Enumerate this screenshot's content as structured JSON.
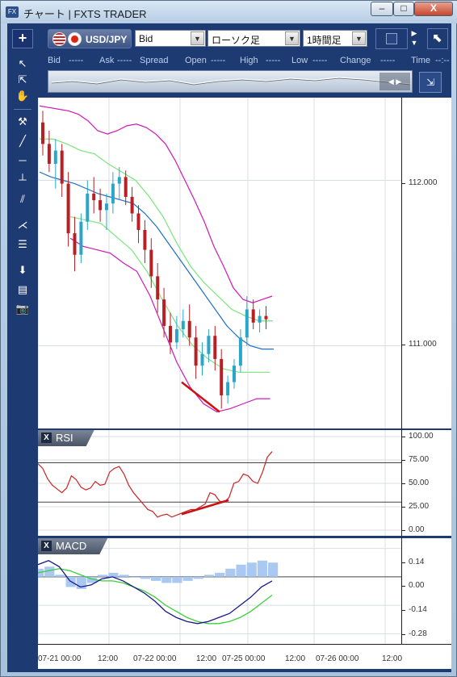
{
  "window": {
    "title": "チャート | FXTS TRADER",
    "app_icon": "FX",
    "minimize": "–",
    "maximize": "□",
    "close": "X"
  },
  "toolbar": {
    "add_chart": "+",
    "symbol": "USD/JPY",
    "price_type": "Bid",
    "chart_type": "ローソク足",
    "timeframe": "1時間足",
    "expand": "⬉"
  },
  "info_row": {
    "bid_label": "Bid",
    "bid_value": "-----",
    "ask_label": "Ask",
    "ask_value": "-----",
    "spread_label": "Spread",
    "open_label": "Open",
    "open_value": "-----",
    "high_label": "High",
    "high_value": "-----",
    "low_label": "Low",
    "low_value": "-----",
    "change_label": "Change",
    "change_value": "-----",
    "time_label": "Time",
    "time_value": "--:--"
  },
  "indicators": {
    "rsi_label": "RSI",
    "macd_label": "MACD",
    "close_icon": "X"
  },
  "price_axis": {
    "ticks": [
      "112.000",
      "111.000"
    ],
    "values": [
      112.0,
      111.0
    ]
  },
  "rsi_axis": {
    "ticks": [
      "100.00",
      "75.00",
      "50.00",
      "25.00",
      "0.00"
    ],
    "values": [
      100,
      75,
      50,
      25,
      0
    ]
  },
  "macd_axis": {
    "ticks": [
      "0.14",
      "0.00",
      "-0.14",
      "-0.28"
    ],
    "values": [
      0.14,
      0,
      -0.14,
      -0.28
    ]
  },
  "time_axis": [
    "07-21 00:00",
    "12:00",
    "07-22 00:00",
    "12:00",
    "07-25 00:00",
    "12:00",
    "07-26 00:00",
    "12:00"
  ],
  "colors": {
    "up_candle": "#2aa7c8",
    "down_candle": "#b82026",
    "bb_outer": "#d018b8",
    "bb_inner": "#7ae57a",
    "bb_mid": "#1f6fc4",
    "rsi_line": "#cc2222",
    "macd_line": "#18188a",
    "signal_line": "#3ccf3c",
    "histogram": "#a9c9f2",
    "trend_line": "#cc1111"
  },
  "chart_data": [
    {
      "type": "candlestick",
      "title": "",
      "ylim": [
        110.5,
        112.5
      ],
      "candles": [
        [
          112.35,
          112.42,
          112.15,
          112.22
        ],
        [
          112.22,
          112.3,
          112.05,
          112.1
        ],
        [
          112.1,
          112.25,
          111.95,
          112.18
        ],
        [
          112.18,
          112.22,
          111.9,
          111.98
        ],
        [
          111.98,
          112.05,
          111.6,
          111.68
        ],
        [
          111.68,
          111.78,
          111.45,
          111.55
        ],
        [
          111.55,
          111.8,
          111.5,
          111.75
        ],
        [
          111.75,
          112.0,
          111.7,
          111.92
        ],
        [
          111.92,
          112.02,
          111.8,
          111.88
        ],
        [
          111.88,
          111.95,
          111.75,
          111.82
        ],
        [
          111.82,
          111.92,
          111.7,
          111.86
        ],
        [
          111.86,
          112.05,
          111.8,
          111.98
        ],
        [
          111.98,
          112.08,
          111.88,
          112.02
        ],
        [
          112.02,
          112.06,
          111.85,
          111.9
        ],
        [
          111.9,
          111.96,
          111.75,
          111.8
        ],
        [
          111.8,
          111.85,
          111.62,
          111.7
        ],
        [
          111.7,
          111.76,
          111.5,
          111.58
        ],
        [
          111.58,
          111.65,
          111.35,
          111.42
        ],
        [
          111.42,
          111.5,
          111.2,
          111.28
        ],
        [
          111.28,
          111.35,
          111.05,
          111.12
        ],
        [
          111.12,
          111.2,
          110.95,
          111.02
        ],
        [
          111.02,
          111.18,
          110.98,
          111.1
        ],
        [
          111.1,
          111.22,
          111.05,
          111.15
        ],
        [
          111.15,
          111.25,
          111.0,
          111.05
        ],
        [
          111.05,
          111.12,
          110.8,
          110.88
        ],
        [
          110.88,
          111.02,
          110.82,
          110.95
        ],
        [
          110.95,
          111.1,
          110.9,
          111.06
        ],
        [
          111.06,
          111.12,
          110.85,
          110.92
        ],
        [
          110.92,
          110.98,
          110.62,
          110.7
        ],
        [
          110.7,
          110.82,
          110.65,
          110.78
        ],
        [
          110.78,
          110.92,
          110.74,
          110.88
        ],
        [
          110.88,
          111.1,
          110.84,
          111.05
        ],
        [
          111.05,
          111.3,
          111.0,
          111.22
        ],
        [
          111.22,
          111.28,
          111.1,
          111.14
        ],
        [
          111.14,
          111.22,
          111.08,
          111.18
        ],
        [
          111.18,
          111.24,
          111.1,
          111.16
        ]
      ],
      "bb_upper": [
        112.45,
        112.44,
        112.43,
        112.42,
        112.4,
        112.36,
        112.3,
        112.28,
        112.3,
        112.33,
        112.34,
        112.32,
        112.28,
        112.22,
        112.12,
        112.0,
        111.88,
        111.75,
        111.6,
        111.48,
        111.35,
        111.28,
        111.26,
        111.28,
        111.3
      ],
      "bb_upper_x": [
        0,
        1,
        2,
        3,
        4,
        5,
        6,
        7,
        8,
        9,
        10,
        11,
        12,
        13,
        14,
        15,
        16,
        17,
        18,
        19,
        20,
        21,
        22,
        23,
        24
      ],
      "bb_mid": [
        112.05,
        112.02,
        112.0,
        111.98,
        111.95,
        111.92,
        111.9,
        111.88,
        111.86,
        111.8,
        111.72,
        111.62,
        111.52,
        111.42,
        111.32,
        111.22,
        111.12,
        111.05,
        111.0,
        110.98,
        110.98
      ],
      "bb_lower": [
        111.65,
        111.6,
        111.58,
        111.56,
        111.5,
        111.45,
        111.3,
        111.1,
        110.9,
        110.75,
        110.65,
        110.6,
        110.62,
        110.65,
        110.68,
        110.68
      ],
      "bb_inner_upper": [
        112.25,
        112.25,
        112.22,
        112.18,
        112.16,
        112.1,
        112.05,
        112.0,
        111.9,
        111.78,
        111.62,
        111.48,
        111.38,
        111.3,
        111.22,
        111.18,
        111.15,
        111.15
      ],
      "bb_inner_lower": [
        111.78,
        111.76,
        111.74,
        111.66,
        111.58,
        111.45,
        111.28,
        111.12,
        111.0,
        110.92,
        110.86,
        110.84,
        110.84,
        110.84
      ],
      "trendline": [
        [
          110.78,
          110.6
        ]
      ]
    },
    {
      "type": "line",
      "title": "",
      "ylim": [
        0,
        100
      ],
      "series": [
        {
          "values": [
            71,
            66,
            55,
            48,
            44,
            40,
            45,
            58,
            54,
            46,
            43,
            45,
            52,
            48,
            49,
            62,
            66,
            68,
            60,
            48,
            40,
            34,
            28,
            22,
            20,
            14,
            16,
            17,
            14,
            16,
            18,
            20,
            22,
            22,
            25,
            28,
            40,
            38,
            31,
            30,
            35,
            50,
            52,
            60,
            58,
            52,
            50,
            62,
            78,
            84
          ]
        }
      ],
      "reference_lines": [
        72,
        30
      ]
    },
    {
      "type": "line",
      "title": "",
      "ylim": [
        -0.33,
        0.19
      ],
      "series": [
        {
          "values": [
            0.06,
            0.08,
            0.05,
            -0.02,
            -0.05,
            -0.04,
            -0.01,
            0.0,
            -0.02,
            -0.05,
            -0.08,
            -0.12,
            -0.17,
            -0.2,
            -0.22,
            -0.23,
            -0.22,
            -0.2,
            -0.18,
            -0.14,
            -0.1,
            -0.05,
            -0.02
          ]
        },
        {
          "values": [
            0.02,
            0.03,
            0.04,
            0.03,
            0.01,
            -0.01,
            -0.02,
            -0.02,
            -0.03,
            -0.05,
            -0.07,
            -0.1,
            -0.14,
            -0.17,
            -0.2,
            -0.22,
            -0.23,
            -0.23,
            -0.22,
            -0.2,
            -0.17,
            -0.13,
            -0.09
          ]
        }
      ],
      "histogram": [
        0.04,
        0.05,
        0.01,
        -0.05,
        -0.06,
        -0.03,
        0.01,
        0.02,
        0.01,
        0.0,
        -0.01,
        -0.02,
        -0.03,
        -0.03,
        -0.02,
        -0.01,
        0.01,
        0.02,
        0.04,
        0.06,
        0.07,
        0.08,
        0.07
      ]
    }
  ]
}
